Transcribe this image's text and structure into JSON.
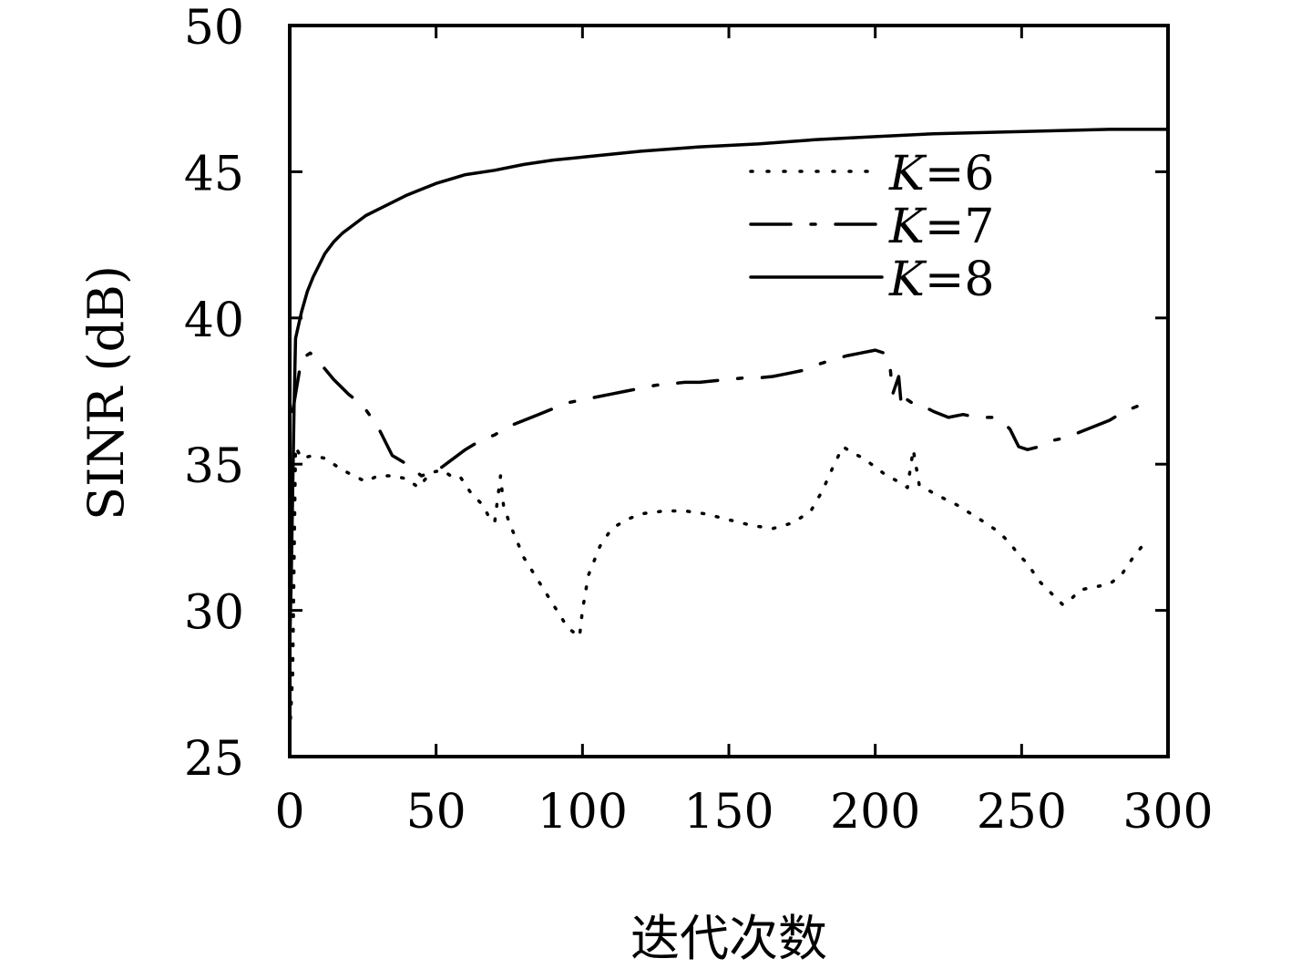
{
  "chart_data": {
    "type": "line",
    "xlabel": "迭代次数",
    "ylabel": "SINR (dB)",
    "xlim": [
      0,
      300
    ],
    "ylim": [
      25,
      50
    ],
    "xticks": [
      "0",
      "50",
      "100",
      "150",
      "200",
      "250",
      "300"
    ],
    "yticks": [
      "25",
      "30",
      "35",
      "40",
      "45",
      "50"
    ],
    "grid": false,
    "legend_position": "upper-right",
    "series": [
      {
        "name": "K=6",
        "line_style": "dotted",
        "color": "#000000",
        "points": [
          [
            0,
            25.8
          ],
          [
            1,
            27.8
          ],
          [
            2,
            35.6
          ],
          [
            4,
            35.2
          ],
          [
            8,
            35.3
          ],
          [
            12,
            35.2
          ],
          [
            18,
            34.8
          ],
          [
            22,
            34.6
          ],
          [
            26,
            34.4
          ],
          [
            30,
            34.6
          ],
          [
            35,
            34.6
          ],
          [
            40,
            34.5
          ],
          [
            44,
            34.2
          ],
          [
            48,
            34.7
          ],
          [
            52,
            34.8
          ],
          [
            55,
            34.6
          ],
          [
            58,
            34.6
          ],
          [
            62,
            34.0
          ],
          [
            66,
            33.6
          ],
          [
            68,
            33.2
          ],
          [
            70,
            33.0
          ],
          [
            72,
            34.6
          ],
          [
            73,
            33.6
          ],
          [
            75,
            33.0
          ],
          [
            80,
            31.8
          ],
          [
            85,
            31.0
          ],
          [
            90,
            30.2
          ],
          [
            95,
            29.4
          ],
          [
            99,
            29.1
          ],
          [
            100,
            30.0
          ],
          [
            102,
            31.2
          ],
          [
            106,
            32.2
          ],
          [
            110,
            32.8
          ],
          [
            115,
            33.1
          ],
          [
            120,
            33.3
          ],
          [
            128,
            33.4
          ],
          [
            135,
            33.4
          ],
          [
            142,
            33.3
          ],
          [
            150,
            33.1
          ],
          [
            158,
            32.9
          ],
          [
            165,
            32.8
          ],
          [
            172,
            33.0
          ],
          [
            178,
            33.4
          ],
          [
            182,
            34.1
          ],
          [
            186,
            35.0
          ],
          [
            189,
            35.6
          ],
          [
            192,
            35.4
          ],
          [
            196,
            35.2
          ],
          [
            200,
            34.9
          ],
          [
            204,
            34.6
          ],
          [
            208,
            34.4
          ],
          [
            211,
            34.2
          ],
          [
            213,
            35.5
          ],
          [
            215,
            34.3
          ],
          [
            220,
            34.0
          ],
          [
            228,
            33.6
          ],
          [
            236,
            33.1
          ],
          [
            242,
            32.7
          ],
          [
            246,
            32.3
          ],
          [
            249,
            31.9
          ],
          [
            252,
            31.6
          ],
          [
            256,
            31.0
          ],
          [
            260,
            30.6
          ],
          [
            264,
            30.2
          ],
          [
            267,
            30.4
          ],
          [
            270,
            30.7
          ],
          [
            275,
            30.8
          ],
          [
            280,
            30.9
          ],
          [
            284,
            31.2
          ],
          [
            288,
            31.8
          ],
          [
            292,
            32.3
          ]
        ]
      },
      {
        "name": "K=7",
        "line_style": "dash-dot",
        "color": "#000000",
        "points": [
          [
            1,
            36.8
          ],
          [
            4,
            38.6
          ],
          [
            7,
            38.8
          ],
          [
            10,
            38.5
          ],
          [
            15,
            37.9
          ],
          [
            20,
            37.4
          ],
          [
            25,
            37.0
          ],
          [
            30,
            36.3
          ],
          [
            35,
            35.3
          ],
          [
            40,
            35.0
          ],
          [
            45,
            34.6
          ],
          [
            48,
            34.7
          ],
          [
            52,
            34.9
          ],
          [
            56,
            35.2
          ],
          [
            60,
            35.5
          ],
          [
            65,
            35.8
          ],
          [
            70,
            36.0
          ],
          [
            75,
            36.3
          ],
          [
            80,
            36.5
          ],
          [
            85,
            36.7
          ],
          [
            90,
            36.9
          ],
          [
            95,
            37.1
          ],
          [
            100,
            37.2
          ],
          [
            105,
            37.3
          ],
          [
            110,
            37.4
          ],
          [
            115,
            37.5
          ],
          [
            120,
            37.6
          ],
          [
            125,
            37.7
          ],
          [
            130,
            37.75
          ],
          [
            135,
            37.8
          ],
          [
            140,
            37.8
          ],
          [
            145,
            37.85
          ],
          [
            150,
            37.9
          ],
          [
            155,
            37.95
          ],
          [
            160,
            37.95
          ],
          [
            165,
            38.0
          ],
          [
            170,
            38.1
          ],
          [
            175,
            38.2
          ],
          [
            180,
            38.4
          ],
          [
            185,
            38.55
          ],
          [
            190,
            38.7
          ],
          [
            195,
            38.8
          ],
          [
            200,
            38.9
          ],
          [
            203,
            38.8
          ],
          [
            205,
            38.4
          ],
          [
            206,
            37.4
          ],
          [
            208,
            38.0
          ],
          [
            209,
            36.9
          ],
          [
            211,
            37.2
          ],
          [
            214,
            37.0
          ],
          [
            216,
            37.0
          ],
          [
            220,
            36.8
          ],
          [
            225,
            36.6
          ],
          [
            230,
            36.7
          ],
          [
            235,
            36.6
          ],
          [
            240,
            36.6
          ],
          [
            243,
            36.5
          ],
          [
            246,
            36.2
          ],
          [
            249,
            35.6
          ],
          [
            252,
            35.5
          ],
          [
            256,
            35.6
          ],
          [
            260,
            35.8
          ],
          [
            265,
            35.9
          ],
          [
            270,
            36.1
          ],
          [
            275,
            36.3
          ],
          [
            280,
            36.5
          ],
          [
            285,
            36.8
          ],
          [
            290,
            37.0
          ],
          [
            294,
            37.2
          ]
        ]
      },
      {
        "name": "K=8",
        "line_style": "solid",
        "color": "#000000",
        "points": [
          [
            0,
            28.8
          ],
          [
            0.5,
            31
          ],
          [
            1,
            34
          ],
          [
            1.5,
            37
          ],
          [
            2,
            39.3
          ],
          [
            4,
            40.2
          ],
          [
            6,
            40.9
          ],
          [
            8,
            41.4
          ],
          [
            10,
            41.8
          ],
          [
            12,
            42.2
          ],
          [
            15,
            42.6
          ],
          [
            18,
            42.9
          ],
          [
            22,
            43.2
          ],
          [
            26,
            43.5
          ],
          [
            30,
            43.7
          ],
          [
            35,
            43.95
          ],
          [
            40,
            44.2
          ],
          [
            45,
            44.4
          ],
          [
            50,
            44.6
          ],
          [
            55,
            44.75
          ],
          [
            60,
            44.9
          ],
          [
            70,
            45.05
          ],
          [
            80,
            45.25
          ],
          [
            90,
            45.4
          ],
          [
            100,
            45.5
          ],
          [
            120,
            45.7
          ],
          [
            140,
            45.85
          ],
          [
            160,
            45.95
          ],
          [
            180,
            46.1
          ],
          [
            200,
            46.2
          ],
          [
            220,
            46.3
          ],
          [
            240,
            46.35
          ],
          [
            260,
            46.4
          ],
          [
            280,
            46.45
          ],
          [
            300,
            46.45
          ]
        ]
      }
    ]
  },
  "legend": {
    "items": [
      {
        "var": "K",
        "rest": "=6"
      },
      {
        "var": "K",
        "rest": "=7"
      },
      {
        "var": "K",
        "rest": "=8"
      }
    ]
  }
}
